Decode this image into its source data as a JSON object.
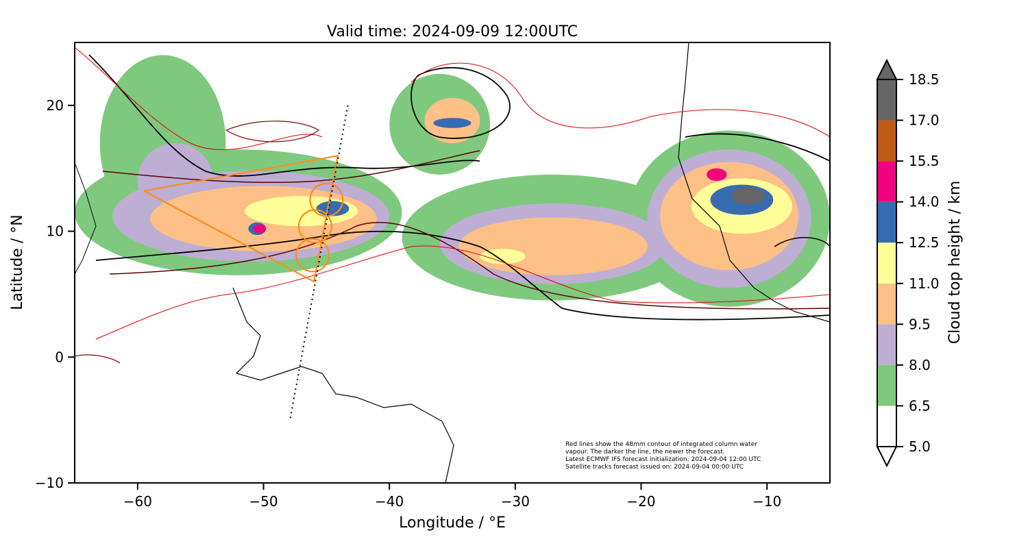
{
  "chart_data": {
    "type": "heatmap",
    "title": "Valid time: 2024-09-09 12:00UTC",
    "xlabel": "Longitude / °E",
    "ylabel": "Latitude / °N",
    "xlim": [
      -65,
      -5
    ],
    "ylim": [
      -10,
      25
    ],
    "x_ticks": [
      -60,
      -50,
      -40,
      -30,
      -20,
      -10
    ],
    "x_tick_labels": [
      "−60",
      "−50",
      "−40",
      "−30",
      "−20",
      "−10"
    ],
    "y_ticks": [
      -10,
      0,
      10,
      20
    ],
    "y_tick_labels": [
      "−10",
      "0",
      "10",
      "20"
    ],
    "colorbar": {
      "label": "Cloud top height / km",
      "bounds": [
        5.0,
        6.5,
        8.0,
        9.5,
        11.0,
        12.5,
        14.0,
        15.5,
        17.0,
        18.5
      ],
      "tick_labels": [
        "5.0",
        "6.5",
        "8.0",
        "9.5",
        "11.0",
        "12.5",
        "14.0",
        "15.5",
        "17.0",
        "18.5"
      ],
      "colors": [
        "#ffffff",
        "#7fc97f",
        "#beaed4",
        "#fdc086",
        "#ffff99",
        "#386cb0",
        "#f0027f",
        "#bf5b17",
        "#666666"
      ],
      "extend": "both"
    },
    "annotation": [
      "Red lines show the 48mm contour of integrated column water",
      "vapour. The darker the line, the newer the forecast.",
      "Latest ECMWF IFS forecast initialization: 2024-09-04 12:00 UTC",
      "Satellite tracks forecast issued on: 2024-09-04 00:00 UTC"
    ],
    "flight_track": {
      "color": "#ff8c1a",
      "points": [
        [
          -59.5,
          13.2
        ],
        [
          -44.1,
          16.0
        ],
        [
          -46.0,
          6.0
        ],
        [
          -59.5,
          13.2
        ]
      ],
      "circles": [
        {
          "center": [
            -45.0,
            12.5
          ],
          "radius_deg": 1.3
        },
        {
          "center": [
            -45.9,
            10.4
          ],
          "radius_deg": 1.3
        },
        {
          "center": [
            -46.1,
            8.1
          ],
          "radius_deg": 1.3
        }
      ]
    },
    "satellite_track": {
      "points": [
        [
          -43.3,
          20.0
        ],
        [
          -47.9,
          -5.0
        ]
      ],
      "style": "dotted"
    },
    "cloud_regions": [
      {
        "level": 1,
        "center": [
          -52,
          11.5
        ],
        "rx": 13,
        "ry": 5
      },
      {
        "level": 1,
        "center": [
          -58,
          17
        ],
        "rx": 5,
        "ry": 7
      },
      {
        "level": 1,
        "center": [
          -36,
          18.5
        ],
        "rx": 4,
        "ry": 4
      },
      {
        "level": 1,
        "center": [
          -27,
          9.5
        ],
        "rx": 12,
        "ry": 5
      },
      {
        "level": 1,
        "center": [
          -13,
          11
        ],
        "rx": 8,
        "ry": 7
      },
      {
        "level": 2,
        "center": [
          -51,
          11.2
        ],
        "rx": 11,
        "ry": 3.6
      },
      {
        "level": 2,
        "center": [
          -27,
          9.0
        ],
        "rx": 9,
        "ry": 3.2
      },
      {
        "level": 2,
        "center": [
          -13,
          11
        ],
        "rx": 6.5,
        "ry": 5.5
      },
      {
        "level": 2,
        "center": [
          -57,
          14
        ],
        "rx": 3,
        "ry": 3
      },
      {
        "level": 3,
        "center": [
          -50,
          11.0
        ],
        "rx": 9,
        "ry": 2.6
      },
      {
        "level": 3,
        "center": [
          -27,
          8.8
        ],
        "rx": 7.5,
        "ry": 2.3
      },
      {
        "level": 3,
        "center": [
          -13,
          11.2
        ],
        "rx": 5.5,
        "ry": 4.3
      },
      {
        "level": 3,
        "center": [
          -35,
          18.8
        ],
        "rx": 2.2,
        "ry": 1.8
      },
      {
        "level": 4,
        "center": [
          -47,
          11.6
        ],
        "rx": 4.5,
        "ry": 1.2
      },
      {
        "level": 4,
        "center": [
          -31,
          8.0
        ],
        "rx": 1.8,
        "ry": 0.6
      },
      {
        "level": 4,
        "center": [
          -12,
          12.0
        ],
        "rx": 4,
        "ry": 2.2
      },
      {
        "level": 5,
        "center": [
          -44.5,
          11.8
        ],
        "rx": 1.3,
        "ry": 0.6
      },
      {
        "level": 5,
        "center": [
          -50.5,
          10.2
        ],
        "rx": 0.7,
        "ry": 0.5
      },
      {
        "level": 5,
        "center": [
          -12,
          12.5
        ],
        "rx": 2.5,
        "ry": 1.2
      },
      {
        "level": 5,
        "center": [
          -35,
          18.6
        ],
        "rx": 1.5,
        "ry": 0.4
      },
      {
        "level": 6,
        "center": [
          -14,
          14.5
        ],
        "rx": 0.8,
        "ry": 0.5
      },
      {
        "level": 6,
        "center": [
          -50.3,
          10.2
        ],
        "rx": 0.5,
        "ry": 0.35
      },
      {
        "level": 8,
        "center": [
          -11.5,
          12.8
        ],
        "rx": 1.3,
        "ry": 0.7
      }
    ]
  }
}
